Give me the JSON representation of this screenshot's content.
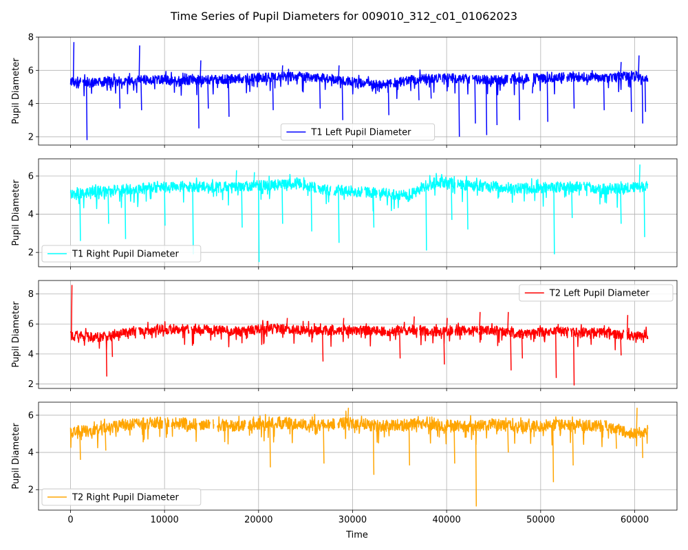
{
  "chart_data": {
    "type": "line",
    "title": "Time Series of Pupil Diameters for 009010_312_c01_01062023",
    "xlabel": "Time",
    "xlim": [
      -3400,
      64500
    ],
    "xticks": [
      0,
      10000,
      20000,
      30000,
      40000,
      50000,
      60000
    ],
    "grid": true,
    "x_range_data": [
      0,
      61400
    ],
    "panels": [
      {
        "ylabel": "Pupil Diameter",
        "ylim": [
          1.5,
          8.0
        ],
        "yticks": [
          2,
          4,
          6,
          8
        ],
        "legend_placement": "lower-center",
        "series": [
          {
            "name": "T1 Left Pupil Diameter",
            "color": "#0000ff",
            "baseline": [
              [
                0,
                5.3
              ],
              [
                3000,
                5.3
              ],
              [
                6000,
                5.35
              ],
              [
                9000,
                5.45
              ],
              [
                12000,
                5.4
              ],
              [
                15000,
                5.45
              ],
              [
                18000,
                5.5
              ],
              [
                21000,
                5.6
              ],
              [
                24000,
                5.65
              ],
              [
                27000,
                5.55
              ],
              [
                30000,
                5.3
              ],
              [
                33000,
                5.1
              ],
              [
                36000,
                5.4
              ],
              [
                39000,
                5.55
              ],
              [
                42000,
                5.5
              ],
              [
                45000,
                5.4
              ],
              [
                48000,
                5.5
              ],
              [
                51000,
                5.55
              ],
              [
                54000,
                5.6
              ],
              [
                57000,
                5.55
              ],
              [
                60000,
                5.7
              ],
              [
                61400,
                5.4
              ]
            ],
            "noise": 0.28,
            "peaks": [
              [
                300,
                7.7
              ],
              [
                7300,
                7.5
              ],
              [
                13800,
                6.6
              ],
              [
                22500,
                6.3
              ],
              [
                28500,
                6.3
              ],
              [
                58500,
                6.5
              ],
              [
                60400,
                6.9
              ]
            ],
            "dips": [
              [
                1700,
                1.8
              ],
              [
                5200,
                3.7
              ],
              [
                7500,
                3.6
              ],
              [
                13600,
                2.5
              ],
              [
                14600,
                3.7
              ],
              [
                16800,
                3.2
              ],
              [
                21500,
                3.6
              ],
              [
                26500,
                3.7
              ],
              [
                28900,
                3.0
              ],
              [
                33800,
                3.3
              ],
              [
                37000,
                4.2
              ],
              [
                38300,
                4.3
              ],
              [
                41300,
                2.0
              ],
              [
                43000,
                2.8
              ],
              [
                44200,
                2.1
              ],
              [
                45300,
                2.7
              ],
              [
                47700,
                3.0
              ],
              [
                50700,
                2.9
              ],
              [
                53500,
                3.7
              ],
              [
                56700,
                3.6
              ],
              [
                59600,
                3.5
              ],
              [
                60800,
                2.8
              ],
              [
                61100,
                3.5
              ]
            ]
          }
        ]
      },
      {
        "ylabel": "Pupil Diameter",
        "ylim": [
          1.25,
          6.9
        ],
        "yticks": [
          2,
          4,
          6
        ],
        "legend_placement": "lower-left",
        "series": [
          {
            "name": "T1 Right Pupil Diameter",
            "color": "#00ffff",
            "baseline": [
              [
                0,
                5.0
              ],
              [
                3000,
                5.2
              ],
              [
                6000,
                5.3
              ],
              [
                9000,
                5.4
              ],
              [
                12000,
                5.45
              ],
              [
                15000,
                5.4
              ],
              [
                18000,
                5.45
              ],
              [
                21000,
                5.5
              ],
              [
                24000,
                5.6
              ],
              [
                27000,
                5.3
              ],
              [
                30000,
                5.2
              ],
              [
                33000,
                5.1
              ],
              [
                36000,
                4.95
              ],
              [
                38000,
                5.6
              ],
              [
                40000,
                5.7
              ],
              [
                42000,
                5.5
              ],
              [
                45000,
                5.45
              ],
              [
                48000,
                5.35
              ],
              [
                51000,
                5.4
              ],
              [
                54000,
                5.45
              ],
              [
                57000,
                5.3
              ],
              [
                60000,
                5.4
              ],
              [
                61400,
                5.5
              ]
            ],
            "noise": 0.28,
            "peaks": [
              [
                17600,
                6.3
              ],
              [
                19500,
                6.2
              ],
              [
                60500,
                6.6
              ]
            ],
            "dips": [
              [
                1000,
                2.6
              ],
              [
                4000,
                3.5
              ],
              [
                5800,
                2.7
              ],
              [
                10000,
                3.4
              ],
              [
                13000,
                1.9
              ],
              [
                18200,
                3.3
              ],
              [
                20000,
                1.5
              ],
              [
                22500,
                3.5
              ],
              [
                25600,
                3.1
              ],
              [
                28500,
                2.5
              ],
              [
                32200,
                3.3
              ],
              [
                37800,
                2.1
              ],
              [
                40500,
                3.7
              ],
              [
                42200,
                3.2
              ],
              [
                51400,
                1.9
              ],
              [
                53300,
                3.8
              ],
              [
                58500,
                3.5
              ],
              [
                61000,
                2.8
              ]
            ]
          }
        ]
      },
      {
        "ylabel": "Pupil Diameter",
        "ylim": [
          1.7,
          8.9
        ],
        "yticks": [
          2,
          4,
          6,
          8
        ],
        "legend_placement": "top-right",
        "series": [
          {
            "name": "T2 Left Pupil Diameter",
            "color": "#ff0000",
            "baseline": [
              [
                0,
                5.2
              ],
              [
                3000,
                5.1
              ],
              [
                6000,
                5.5
              ],
              [
                9000,
                5.6
              ],
              [
                12000,
                5.7
              ],
              [
                15000,
                5.6
              ],
              [
                18000,
                5.5
              ],
              [
                21000,
                5.7
              ],
              [
                24000,
                5.6
              ],
              [
                27000,
                5.55
              ],
              [
                30000,
                5.6
              ],
              [
                33000,
                5.5
              ],
              [
                36000,
                5.6
              ],
              [
                39000,
                5.5
              ],
              [
                42000,
                5.55
              ],
              [
                45000,
                5.6
              ],
              [
                48000,
                5.35
              ],
              [
                51000,
                5.5
              ],
              [
                54000,
                5.45
              ],
              [
                57000,
                5.4
              ],
              [
                60000,
                5.2
              ],
              [
                61400,
                5.3
              ]
            ],
            "noise": 0.32,
            "peaks": [
              [
                100,
                8.6
              ],
              [
                23000,
                6.4
              ],
              [
                29000,
                6.4
              ],
              [
                36500,
                6.5
              ],
              [
                40000,
                6.4
              ],
              [
                43500,
                6.8
              ],
              [
                46500,
                6.8
              ],
              [
                59200,
                6.6
              ]
            ],
            "dips": [
              [
                3800,
                2.5
              ],
              [
                4400,
                3.8
              ],
              [
                26800,
                3.5
              ],
              [
                35000,
                3.7
              ],
              [
                39700,
                3.3
              ],
              [
                46800,
                2.9
              ],
              [
                48000,
                3.7
              ],
              [
                51600,
                2.4
              ],
              [
                53500,
                1.9
              ],
              [
                58500,
                3.9
              ]
            ]
          }
        ]
      },
      {
        "ylabel": "Pupil Diameter",
        "ylim": [
          0.9,
          6.7
        ],
        "yticks": [
          2,
          4,
          6
        ],
        "legend_placement": "lower-left",
        "series": [
          {
            "name": "T2 Right Pupil Diameter",
            "color": "#ffa500",
            "baseline": [
              [
                0,
                5.1
              ],
              [
                3000,
                5.2
              ],
              [
                6000,
                5.5
              ],
              [
                9000,
                5.6
              ],
              [
                12000,
                5.55
              ],
              [
                15000,
                5.5
              ],
              [
                18000,
                5.4
              ],
              [
                21000,
                5.6
              ],
              [
                24000,
                5.55
              ],
              [
                27000,
                5.45
              ],
              [
                30000,
                5.6
              ],
              [
                33000,
                5.4
              ],
              [
                36000,
                5.5
              ],
              [
                39000,
                5.5
              ],
              [
                42000,
                5.4
              ],
              [
                45000,
                5.5
              ],
              [
                48000,
                5.4
              ],
              [
                51000,
                5.45
              ],
              [
                54000,
                5.5
              ],
              [
                57000,
                5.4
              ],
              [
                60000,
                5.0
              ],
              [
                61400,
                5.2
              ]
            ],
            "noise": 0.32,
            "peaks": [
              [
                29500,
                6.4
              ],
              [
                60200,
                6.4
              ]
            ],
            "dips": [
              [
                1000,
                3.6
              ],
              [
                3700,
                4.1
              ],
              [
                21200,
                3.2
              ],
              [
                26900,
                3.4
              ],
              [
                32200,
                2.8
              ],
              [
                36000,
                3.3
              ],
              [
                40800,
                3.4
              ],
              [
                43100,
                1.1
              ],
              [
                46500,
                4.0
              ],
              [
                51300,
                2.4
              ],
              [
                53400,
                3.3
              ],
              [
                58000,
                4.2
              ],
              [
                60800,
                3.7
              ]
            ]
          }
        ]
      }
    ]
  }
}
